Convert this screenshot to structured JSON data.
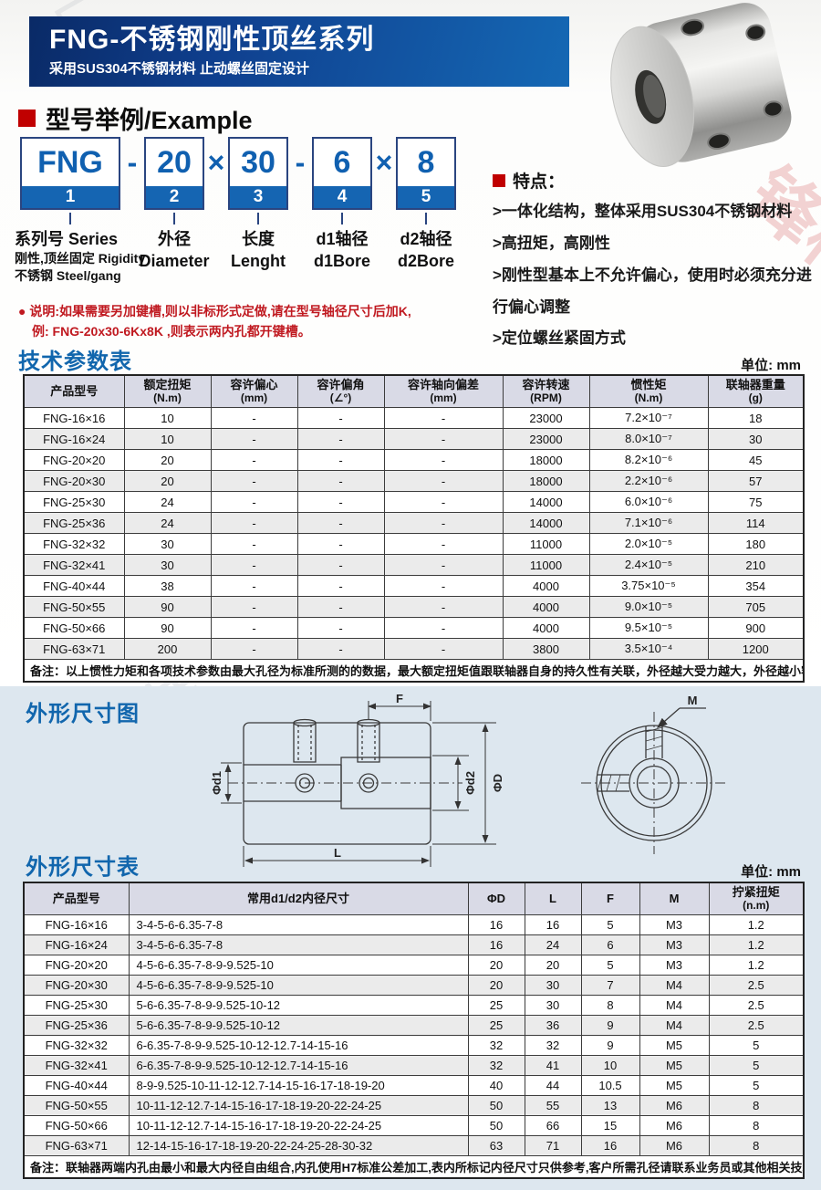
{
  "header": {
    "title": "FNG-不锈钢刚性顶丝系列",
    "subtitle": "采用SUS304不锈钢材料 止动螺丝固定设计"
  },
  "example": {
    "heading": "型号举例/Example",
    "segments": [
      {
        "value": "FNG",
        "num": "1"
      },
      {
        "value": "20",
        "num": "2"
      },
      {
        "value": "30",
        "num": "3"
      },
      {
        "value": "6",
        "num": "4"
      },
      {
        "value": "8",
        "num": "5"
      }
    ],
    "separators": [
      "-",
      "×",
      "-",
      "×"
    ],
    "labels": [
      [
        "系列号 Series",
        "刚性,顶丝固定 Rigidity",
        "不锈钢 Steel/gang"
      ],
      [
        "外径",
        "Diameter"
      ],
      [
        "长度",
        "Lenght"
      ],
      [
        "d1轴径",
        "d1Bore"
      ],
      [
        "d2轴径",
        "d2Bore"
      ]
    ],
    "note_bullet": "●",
    "note_lines": [
      "说明:如果需要另加键槽,则以非标形式定做,请在型号轴径尺寸后加K,",
      "例: FNG-20x30-6Kx8K ,则表示两内孔都开键槽。"
    ]
  },
  "features": {
    "title": "特点：",
    "bullet_prefix": ">",
    "items": [
      "一体化结构，整体采用SUS304不锈钢材料",
      "高扭矩，高刚性",
      "刚性型基本上不允许偏心，使用时必须充分进行偏心调整",
      "定位螺丝紧固方式"
    ]
  },
  "tech_table": {
    "heading": "技术参数表",
    "unit_label": "单位: mm",
    "columns": [
      {
        "name": "产品型号",
        "unit": ""
      },
      {
        "name": "额定扭矩",
        "unit": "(N.m)"
      },
      {
        "name": "容许偏心",
        "unit": "(mm)"
      },
      {
        "name": "容许偏角",
        "unit": "(∠°)"
      },
      {
        "name": "容许轴向偏差",
        "unit": "(mm)"
      },
      {
        "name": "容许转速",
        "unit": "(RPM)"
      },
      {
        "name": "惯性矩",
        "unit": "(N.m)"
      },
      {
        "name": "联轴器重量",
        "unit": "(g)"
      }
    ],
    "rows": [
      [
        "FNG-16×16",
        "10",
        "-",
        "-",
        "-",
        "23000",
        "7.2×10⁻⁷",
        "18"
      ],
      [
        "FNG-16×24",
        "10",
        "-",
        "-",
        "-",
        "23000",
        "8.0×10⁻⁷",
        "30"
      ],
      [
        "FNG-20×20",
        "20",
        "-",
        "-",
        "-",
        "18000",
        "8.2×10⁻⁶",
        "45"
      ],
      [
        "FNG-20×30",
        "20",
        "-",
        "-",
        "-",
        "18000",
        "2.2×10⁻⁶",
        "57"
      ],
      [
        "FNG-25×30",
        "24",
        "-",
        "-",
        "-",
        "14000",
        "6.0×10⁻⁶",
        "75"
      ],
      [
        "FNG-25×36",
        "24",
        "-",
        "-",
        "-",
        "14000",
        "7.1×10⁻⁶",
        "114"
      ],
      [
        "FNG-32×32",
        "30",
        "-",
        "-",
        "-",
        "11000",
        "2.0×10⁻⁵",
        "180"
      ],
      [
        "FNG-32×41",
        "30",
        "-",
        "-",
        "-",
        "11000",
        "2.4×10⁻⁵",
        "210"
      ],
      [
        "FNG-40×44",
        "38",
        "-",
        "-",
        "-",
        "4000",
        "3.75×10⁻⁵",
        "354"
      ],
      [
        "FNG-50×55",
        "90",
        "-",
        "-",
        "-",
        "4000",
        "9.0×10⁻⁵",
        "705"
      ],
      [
        "FNG-50×66",
        "90",
        "-",
        "-",
        "-",
        "4000",
        "9.5×10⁻⁵",
        "900"
      ],
      [
        "FNG-63×71",
        "200",
        "-",
        "-",
        "-",
        "3800",
        "3.5×10⁻⁴",
        "1200"
      ]
    ],
    "note": "备注：以上惯性力矩和各项技术参数由最大孔径为标准所测的的数据，最大额定扭矩值跟联轴器自身的持久性有关联，外径越大受力越大，外径越小容许转速越高。"
  },
  "dimension_section": {
    "diagram_heading": "外形尺寸图",
    "table_heading": "外形尺寸表",
    "unit_label": "单位: mm",
    "diagram_labels": {
      "f": "F",
      "d1": "Φd1",
      "d2": "Φd2",
      "D": "ΦD",
      "l": "L",
      "m": "M"
    }
  },
  "dim_table": {
    "columns": [
      {
        "name": "产品型号",
        "unit": ""
      },
      {
        "name": "常用d1/d2内径尺寸",
        "unit": ""
      },
      {
        "name": "ΦD",
        "unit": ""
      },
      {
        "name": "L",
        "unit": ""
      },
      {
        "name": "F",
        "unit": ""
      },
      {
        "name": "M",
        "unit": ""
      },
      {
        "name": "拧紧扭矩",
        "unit": "(n.m)"
      }
    ],
    "rows": [
      [
        "FNG-16×16",
        "3-4-5-6-6.35-7-8",
        "16",
        "16",
        "5",
        "M3",
        "1.2"
      ],
      [
        "FNG-16×24",
        "3-4-5-6-6.35-7-8",
        "16",
        "24",
        "6",
        "M3",
        "1.2"
      ],
      [
        "FNG-20×20",
        "4-5-6-6.35-7-8-9-9.525-10",
        "20",
        "20",
        "5",
        "M3",
        "1.2"
      ],
      [
        "FNG-20×30",
        "4-5-6-6.35-7-8-9-9.525-10",
        "20",
        "30",
        "7",
        "M4",
        "2.5"
      ],
      [
        "FNG-25×30",
        "5-6-6.35-7-8-9-9.525-10-12",
        "25",
        "30",
        "8",
        "M4",
        "2.5"
      ],
      [
        "FNG-25×36",
        "5-6-6.35-7-8-9-9.525-10-12",
        "25",
        "36",
        "9",
        "M4",
        "2.5"
      ],
      [
        "FNG-32×32",
        "6-6.35-7-8-9-9.525-10-12-12.7-14-15-16",
        "32",
        "32",
        "9",
        "M5",
        "5"
      ],
      [
        "FNG-32×41",
        "6-6.35-7-8-9-9.525-10-12-12.7-14-15-16",
        "32",
        "41",
        "10",
        "M5",
        "5"
      ],
      [
        "FNG-40×44",
        "8-9-9.525-10-11-12-12.7-14-15-16-17-18-19-20",
        "40",
        "44",
        "10.5",
        "M5",
        "5"
      ],
      [
        "FNG-50×55",
        "10-11-12-12.7-14-15-16-17-18-19-20-22-24-25",
        "50",
        "55",
        "13",
        "M6",
        "8"
      ],
      [
        "FNG-50×66",
        "10-11-12-12.7-14-15-16-17-18-19-20-22-24-25",
        "50",
        "66",
        "15",
        "M6",
        "8"
      ],
      [
        "FNG-63×71",
        "12-14-15-16-17-18-19-20-22-24-25-28-30-32",
        "63",
        "71",
        "16",
        "M6",
        "8"
      ]
    ],
    "note": "备注：联轴器两端内孔由最小和最大内径自由组合,内孔使用H7标准公差加工,表内所标记内径尺寸只供参考,客户所需孔径请联系业务员或其他相关技术人员咨询详细参数."
  },
  "watermark": {
    "texts": [
      "锋样",
      "科技锋样",
      "锋样",
      "厂"
    ]
  },
  "colors": {
    "accent_blue": "#1166ad",
    "banner_blue": "#0f3f8e",
    "red": "#c01920",
    "header_bg": "#d9dae6",
    "section_bg": "#dde7ef"
  }
}
